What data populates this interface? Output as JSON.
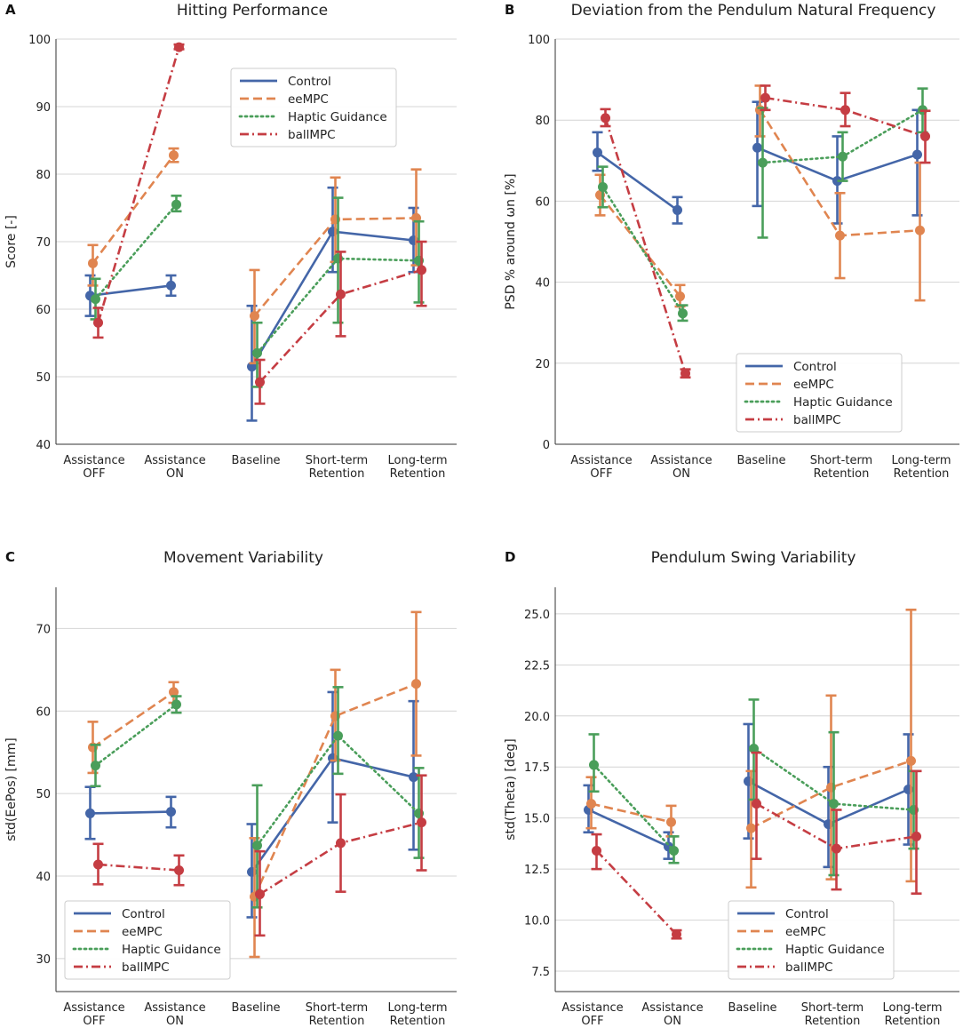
{
  "panel_letters": [
    "A",
    "B",
    "C",
    "D"
  ],
  "colors": {
    "Control": "#4466a8",
    "eeMPC": "#e08550",
    "Haptic Guidance": "#4a9e5a",
    "ballMPC": "#c53d43",
    "grid": "#d4d4d4",
    "axis": "#333333"
  },
  "chart_data": [
    {
      "type": "line",
      "panel": "A",
      "title": "Hitting Performance",
      "ylabel": "Score [-]",
      "xlabel": "",
      "categories": [
        "Assistance\nOFF",
        "Assistance\nON",
        "Baseline",
        "Short-term\nRetention",
        "Long-term\nRetention"
      ],
      "ylim": [
        40,
        100
      ],
      "yticks": [
        40,
        50,
        60,
        70,
        80,
        90,
        100
      ],
      "grid": true,
      "legend_placement": "upper-center",
      "series": [
        {
          "name": "Control",
          "style": "solid",
          "segments": [
            [
              0,
              1
            ],
            [
              2,
              3,
              4
            ]
          ],
          "values": [
            62.0,
            63.5,
            51.5,
            71.5,
            70.2
          ],
          "err_low": [
            59.0,
            62.0,
            43.5,
            65.5,
            65.5
          ],
          "err_high": [
            65.0,
            65.0,
            60.5,
            78.0,
            75.0
          ]
        },
        {
          "name": "eeMPC",
          "style": "dashed",
          "segments": [
            [
              0,
              1
            ],
            [
              2,
              3,
              4
            ]
          ],
          "values": [
            66.8,
            82.8,
            59.0,
            73.3,
            73.5
          ],
          "err_low": [
            63.5,
            81.8,
            52.0,
            67.0,
            66.5
          ],
          "err_high": [
            69.5,
            83.8,
            65.8,
            79.5,
            80.7
          ]
        },
        {
          "name": "Haptic Guidance",
          "style": "dotted",
          "segments": [
            [
              0,
              1
            ],
            [
              2,
              3,
              4
            ]
          ],
          "values": [
            61.5,
            75.5,
            53.5,
            67.5,
            67.2
          ],
          "err_low": [
            58.5,
            74.5,
            48.5,
            58.0,
            61.0
          ],
          "err_high": [
            64.5,
            76.8,
            58.0,
            76.5,
            73.0
          ]
        },
        {
          "name": "ballMPC",
          "style": "dashdot",
          "segments": [
            [
              0,
              1
            ],
            [
              2,
              3,
              4
            ]
          ],
          "values": [
            58.0,
            98.8,
            49.2,
            62.2,
            65.8
          ],
          "err_low": [
            55.8,
            98.5,
            46.0,
            56.0,
            60.5
          ],
          "err_high": [
            60.2,
            99.2,
            52.5,
            68.5,
            70.0
          ]
        }
      ]
    },
    {
      "type": "line",
      "panel": "B",
      "title": "Deviation from the Pendulum Natural Frequency",
      "ylabel": "PSD % around ωn [%]",
      "xlabel": "",
      "categories": [
        "Assistance\nOFF",
        "Assistance\nON",
        "Baseline",
        "Short-term\nRetention",
        "Long-term\nRetention"
      ],
      "ylim": [
        0,
        100
      ],
      "yticks": [
        0,
        20,
        40,
        60,
        80,
        100
      ],
      "grid": true,
      "legend_placement": "lower-center",
      "series": [
        {
          "name": "Control",
          "style": "solid",
          "segments": [
            [
              0,
              1
            ],
            [
              2,
              3,
              4
            ]
          ],
          "values": [
            72.0,
            57.8,
            73.2,
            65.0,
            71.5
          ],
          "err_low": [
            67.5,
            54.5,
            58.8,
            54.5,
            56.5
          ],
          "err_high": [
            77.0,
            61.0,
            84.5,
            76.0,
            82.5
          ]
        },
        {
          "name": "eeMPC",
          "style": "dashed",
          "segments": [
            [
              0,
              1
            ],
            [
              2,
              3,
              4
            ]
          ],
          "values": [
            61.5,
            36.5,
            82.5,
            51.5,
            52.8
          ],
          "err_low": [
            56.5,
            34.0,
            76.0,
            41.0,
            35.5
          ],
          "err_high": [
            66.5,
            39.3,
            88.5,
            62.0,
            69.5
          ]
        },
        {
          "name": "Haptic Guidance",
          "style": "dotted",
          "segments": [
            [
              0,
              1
            ],
            [
              2,
              3,
              4
            ]
          ],
          "values": [
            63.5,
            32.3,
            69.5,
            71.0,
            82.5
          ],
          "err_low": [
            58.5,
            30.5,
            51.0,
            65.0,
            77.0
          ],
          "err_high": [
            68.5,
            34.3,
            83.0,
            77.0,
            87.8
          ]
        },
        {
          "name": "ballMPC",
          "style": "dashdot",
          "segments": [
            [
              0,
              1
            ],
            [
              2,
              3,
              4
            ]
          ],
          "values": [
            80.5,
            17.5,
            85.5,
            82.5,
            76.0
          ],
          "err_low": [
            78.5,
            16.5,
            82.5,
            78.5,
            69.5
          ],
          "err_high": [
            82.7,
            18.5,
            88.5,
            86.7,
            82.3
          ]
        }
      ]
    },
    {
      "type": "line",
      "panel": "C",
      "title": "Movement Variability",
      "ylabel": "std(EePos) [mm]",
      "xlabel": "",
      "categories": [
        "Assistance\nOFF",
        "Assistance\nON",
        "Baseline",
        "Short-term\nRetention",
        "Long-term\nRetention"
      ],
      "ylim": [
        26,
        75
      ],
      "yticks": [
        30,
        40,
        50,
        60,
        70
      ],
      "grid": true,
      "legend_placement": "lower-left",
      "series": [
        {
          "name": "Control",
          "style": "solid",
          "segments": [
            [
              0,
              1
            ],
            [
              2,
              3,
              4
            ]
          ],
          "values": [
            47.6,
            47.8,
            40.5,
            54.3,
            52.0
          ],
          "err_low": [
            44.5,
            45.9,
            35.0,
            46.5,
            43.2
          ],
          "err_high": [
            50.8,
            49.6,
            46.3,
            62.3,
            61.2
          ]
        },
        {
          "name": "eeMPC",
          "style": "dashed",
          "segments": [
            [
              0,
              1
            ],
            [
              2,
              3,
              4
            ]
          ],
          "values": [
            55.6,
            62.3,
            37.5,
            59.4,
            63.3
          ],
          "err_low": [
            52.5,
            61.0,
            30.2,
            54.0,
            54.6
          ],
          "err_high": [
            58.7,
            63.5,
            44.6,
            65.0,
            72.0
          ]
        },
        {
          "name": "Haptic Guidance",
          "style": "dotted",
          "segments": [
            [
              0,
              1
            ],
            [
              2,
              3,
              4
            ]
          ],
          "values": [
            53.4,
            60.8,
            43.7,
            57.0,
            47.6
          ],
          "err_low": [
            50.9,
            59.8,
            36.2,
            52.4,
            42.2
          ],
          "err_high": [
            55.9,
            61.8,
            51.0,
            62.9,
            53.1
          ]
        },
        {
          "name": "ballMPC",
          "style": "dashdot",
          "segments": [
            [
              0,
              1
            ],
            [
              2,
              3,
              4
            ]
          ],
          "values": [
            41.4,
            40.7,
            37.8,
            44.0,
            46.5
          ],
          "err_low": [
            39.0,
            38.9,
            32.8,
            38.1,
            40.7
          ],
          "err_high": [
            43.9,
            42.5,
            43.0,
            49.9,
            52.2
          ]
        }
      ]
    },
    {
      "type": "line",
      "panel": "D",
      "title": "Pendulum Swing Variability",
      "ylabel": "std(Theta) [deg]",
      "xlabel": "",
      "categories": [
        "Assistance\nOFF",
        "Assistance\nON",
        "Baseline",
        "Short-term\nRetention",
        "Long-term\nRetention"
      ],
      "ylim": [
        6.5,
        26.3
      ],
      "yticks": [
        7.5,
        10.0,
        12.5,
        15.0,
        17.5,
        20.0,
        22.5,
        25.0
      ],
      "yticks_format": 1,
      "grid": true,
      "legend_placement": "lower-center",
      "series": [
        {
          "name": "Control",
          "style": "solid",
          "segments": [
            [
              0,
              1
            ],
            [
              2,
              3,
              4
            ]
          ],
          "values": [
            15.4,
            13.6,
            16.8,
            14.7,
            16.4
          ],
          "err_low": [
            14.3,
            13.0,
            14.0,
            12.6,
            13.7
          ],
          "err_high": [
            16.6,
            14.3,
            19.6,
            17.5,
            19.1
          ]
        },
        {
          "name": "eeMPC",
          "style": "dashed",
          "segments": [
            [
              0,
              1
            ],
            [
              2,
              3,
              4
            ]
          ],
          "values": [
            15.7,
            14.8,
            14.5,
            16.5,
            17.8
          ],
          "err_low": [
            14.5,
            14.1,
            11.6,
            12.0,
            11.9
          ],
          "err_high": [
            17.0,
            15.6,
            17.3,
            21.0,
            25.2
          ]
        },
        {
          "name": "Haptic Guidance",
          "style": "dotted",
          "segments": [
            [
              0,
              1
            ],
            [
              2,
              3,
              4
            ]
          ],
          "values": [
            17.6,
            13.4,
            18.4,
            15.7,
            15.4
          ],
          "err_low": [
            16.3,
            12.8,
            15.9,
            12.2,
            13.5
          ],
          "err_high": [
            19.1,
            14.1,
            20.8,
            19.2,
            17.3
          ]
        },
        {
          "name": "ballMPC",
          "style": "dashdot",
          "segments": [
            [
              0,
              1
            ],
            [
              2,
              3,
              4
            ]
          ],
          "values": [
            13.4,
            9.3,
            15.7,
            13.5,
            14.1
          ],
          "err_low": [
            12.5,
            9.1,
            13.0,
            11.5,
            11.3
          ],
          "err_high": [
            14.2,
            9.5,
            18.2,
            15.4,
            17.3
          ]
        }
      ]
    }
  ]
}
